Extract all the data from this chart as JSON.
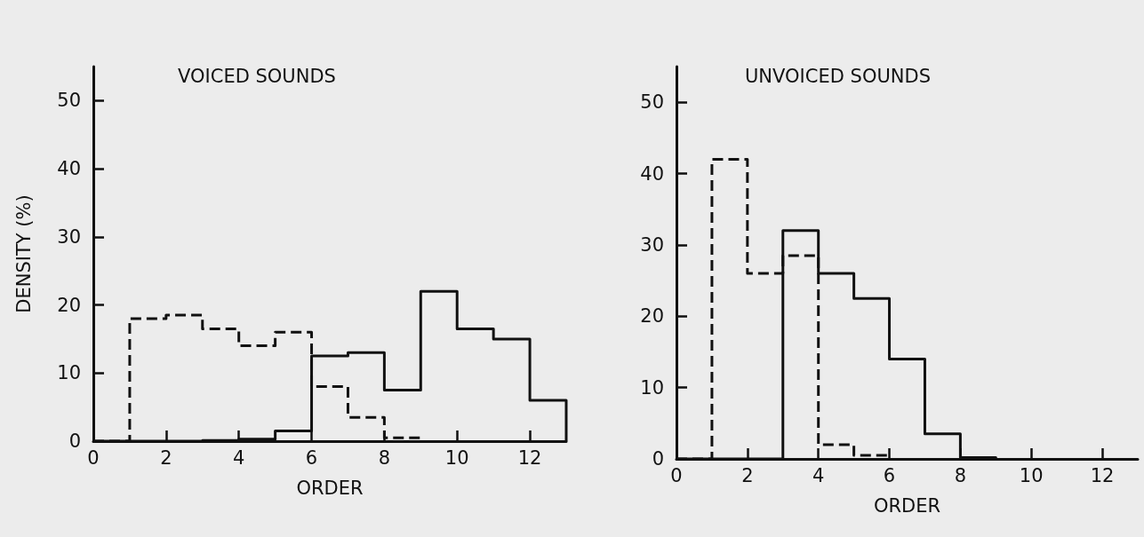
{
  "chart_data": [
    {
      "type": "step",
      "title": "VOICED SOUNDS",
      "xlabel": "ORDER",
      "ylabel": "DENSITY (%)",
      "xlim": [
        0,
        13
      ],
      "xticks": [
        0,
        2,
        4,
        6,
        8,
        10,
        12
      ],
      "ylim": [
        0,
        55
      ],
      "yticks": [
        0,
        10,
        20,
        30,
        40,
        50
      ],
      "grid": false,
      "marker": "none",
      "series": [
        {
          "color": "#111111",
          "line_style": "dashed",
          "x": [
            0,
            1,
            2,
            3,
            4,
            5,
            6,
            7,
            8,
            9
          ],
          "values": [
            0,
            18,
            18.5,
            16.5,
            14,
            16,
            8,
            3.5,
            0.5,
            0
          ]
        },
        {
          "color": "#111111",
          "line_style": "solid",
          "x": [
            0,
            3,
            4,
            5,
            6,
            7,
            8,
            9,
            10,
            11,
            12,
            13
          ],
          "values": [
            0,
            0.1,
            0.3,
            1.5,
            12.5,
            13,
            7.5,
            22,
            16.5,
            15,
            6,
            0
          ]
        }
      ]
    },
    {
      "type": "step",
      "title": "UNVOICED SOUNDS",
      "xlabel": "ORDER",
      "xlim": [
        0,
        13
      ],
      "xticks": [
        0,
        2,
        4,
        6,
        8,
        10,
        12
      ],
      "ylim": [
        0,
        55
      ],
      "yticks": [
        0,
        10,
        20,
        30,
        40,
        50
      ],
      "grid": false,
      "marker": "none",
      "series": [
        {
          "color": "#111111",
          "line_style": "dashed",
          "x": [
            0,
            1,
            2,
            3,
            4,
            5,
            6
          ],
          "values": [
            0,
            42,
            26,
            28.5,
            2,
            0.5,
            0
          ]
        },
        {
          "color": "#111111",
          "line_style": "solid",
          "x": [
            0,
            3,
            4,
            5,
            6,
            7,
            8,
            9
          ],
          "values": [
            0,
            32,
            26,
            22.5,
            14,
            3.5,
            0.2,
            0
          ]
        }
      ]
    }
  ]
}
